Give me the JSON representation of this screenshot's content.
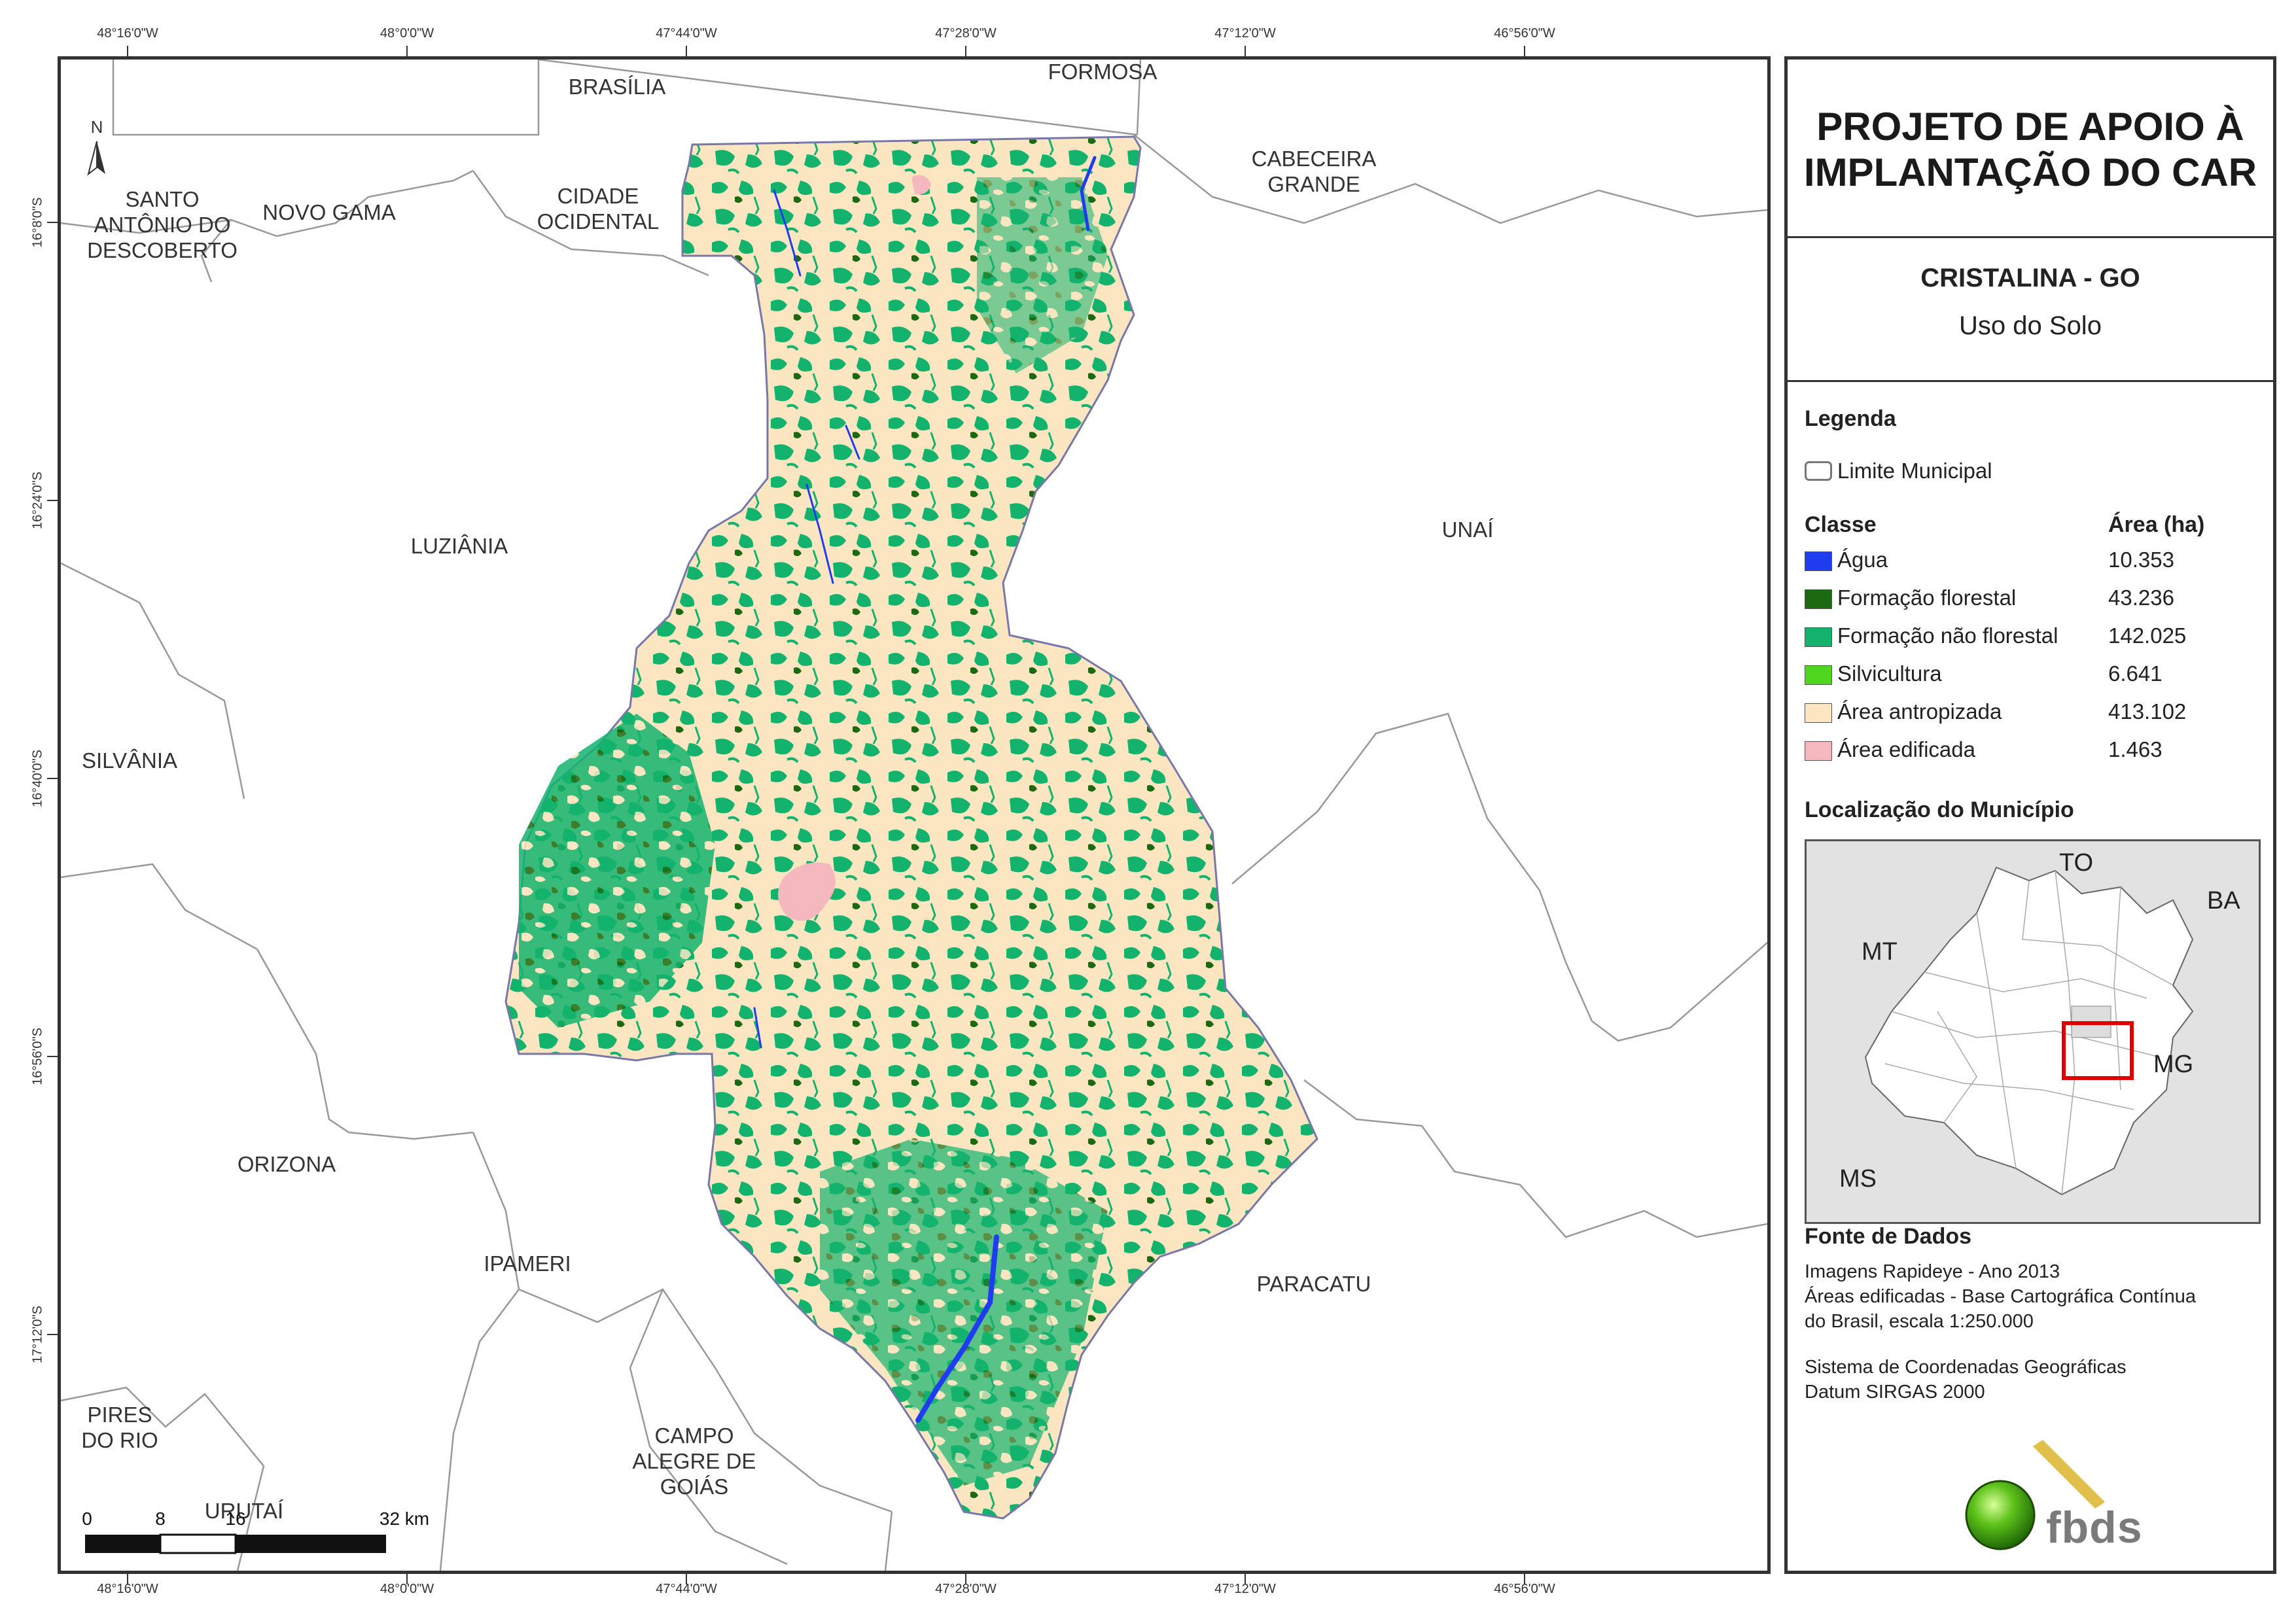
{
  "coordinates": {
    "top_longitudes": [
      "48°16'0\"W",
      "48°0'0\"W",
      "47°44'0\"W",
      "47°28'0\"W",
      "47°12'0\"W",
      "46°56'0\"W"
    ],
    "bottom_longitudes": [
      "48°16'0\"W",
      "48°0'0\"W",
      "47°44'0\"W",
      "47°28'0\"W",
      "47°12'0\"W",
      "46°56'0\"W"
    ],
    "left_latitudes": [
      "16°8'0\"S",
      "16°24'0\"S",
      "16°40'0\"S",
      "16°56'0\"S",
      "17°12'0\"S"
    ]
  },
  "map": {
    "north_label": "N",
    "neighbor_labels": {
      "brasilia": "BRASÍLIA",
      "formosa": "FORMOSA",
      "santo_antonio": [
        "SANTO",
        "ANTÔNIO DO",
        "DESCOBERTO"
      ],
      "novo_gama": "NOVO GAMA",
      "cidade_ocidental": [
        "CIDADE",
        "OCIDENTAL"
      ],
      "cabeceira_grande": [
        "CABECEIRA",
        "GRANDE"
      ],
      "luziania": "LUZIÂNIA",
      "unai": "UNAÍ",
      "silvania": "SILVÂNIA",
      "orizona": "ORIZONA",
      "ipameri": "IPAMERI",
      "paracatu": "PARACATU",
      "pires_do_rio": [
        "PIRES",
        "DO RIO"
      ],
      "campo_alegre": [
        "CAMPO",
        "ALEGRE DE",
        "GOIÁS"
      ],
      "urutai": "URUTAÍ"
    },
    "scale_labels": [
      "0",
      "8",
      "16",
      "32 km"
    ]
  },
  "panel": {
    "title": [
      "PROJETO DE APOIO À",
      "IMPLANTAÇÃO DO CAR"
    ],
    "municipio": "CRISTALINA - GO",
    "tema": "Uso do Solo",
    "legenda_heading": "Legenda",
    "limite_label": "Limite Municipal",
    "classe_heading": "Classe",
    "area_heading": "Área (ha)",
    "classes": [
      {
        "label": "Água",
        "area": "10.353",
        "color": "#1f3cf0"
      },
      {
        "label": "Formação florestal",
        "area": "43.236",
        "color": "#1b6a12"
      },
      {
        "label": "Formação não florestal",
        "area": "142.025",
        "color": "#13b36e"
      },
      {
        "label": "Silvicultura",
        "area": "6.641",
        "color": "#4fd61e"
      },
      {
        "label": "Área antropizada",
        "area": "413.102",
        "color": "#fbe6c1"
      },
      {
        "label": "Área edificada",
        "area": "1.463",
        "color": "#f5b8be"
      }
    ],
    "localizacao_heading": "Localização do Município",
    "inset_labels": {
      "to": "TO",
      "ba": "BA",
      "mt": "MT",
      "mg": "MG",
      "ms": "MS"
    },
    "fonte_heading": "Fonte de Dados",
    "fonte_lines": [
      "Imagens Rapideye - Ano 2013",
      "Áreas edificadas - Base Cartográfica Contínua",
      "do Brasil, escala 1:250.000"
    ],
    "sistema_lines": [
      "Sistema de Coordenadas Geográficas",
      "Datum SIRGAS 2000"
    ],
    "logo_text": "fbds"
  }
}
